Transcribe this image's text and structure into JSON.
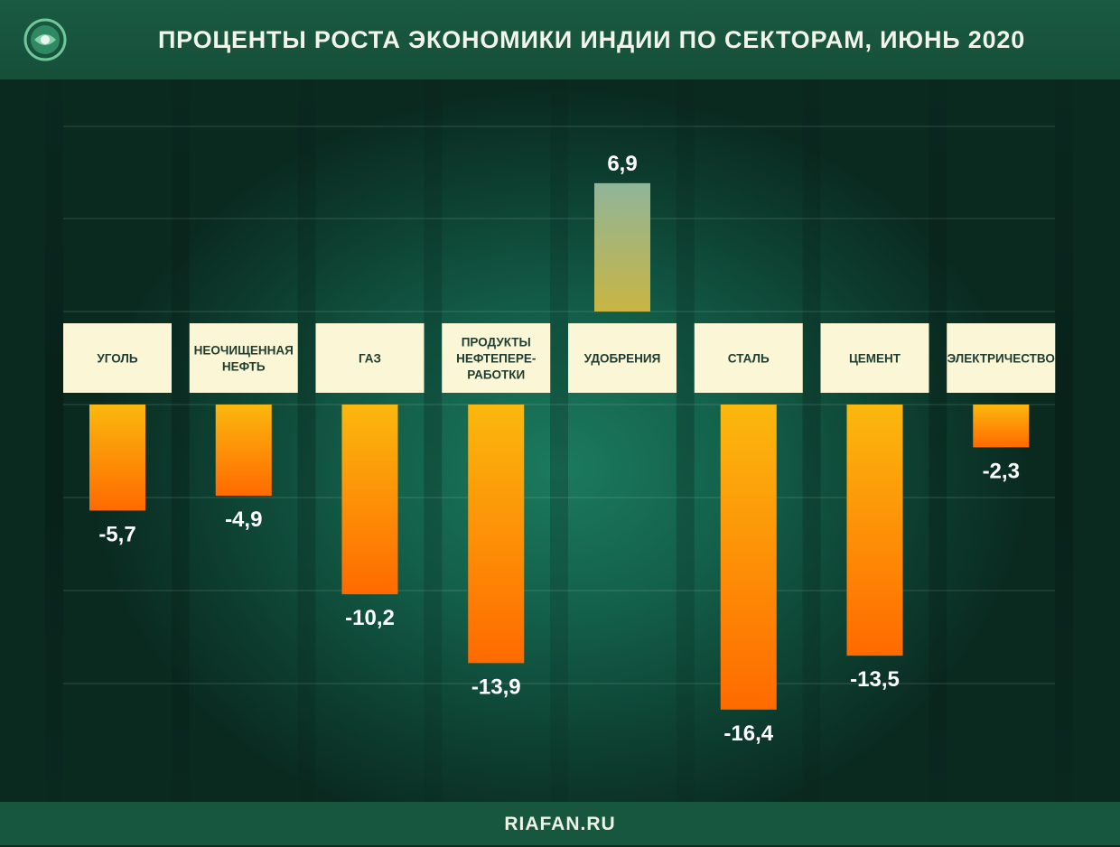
{
  "header": {
    "title": "ПРОЦЕНТЫ РОСТА ЭКОНОМИКИ ИНДИИ ПО СЕКТОРАМ, ИЮНЬ 2020",
    "logo_icon": "globe-emblem-icon"
  },
  "footer": {
    "source": "RIAFAN.RU"
  },
  "colors": {
    "header_bg": "#1a5a42",
    "background": "#135f49",
    "label_band": "#fbf6d6",
    "negative_bar_top": "#fbb80e",
    "negative_bar_bottom": "#ff6a00",
    "positive_bar_top": "#8fb59a",
    "positive_bar_bottom": "#c9b543",
    "value_text": "#ffffff"
  },
  "chart_data": {
    "type": "bar",
    "title": "ПРОЦЕНТЫ РОСТА ЭКОНОМИКИ ИНДИИ ПО СЕКТОРАМ, ИЮНЬ 2020",
    "categories": [
      [
        "УГОЛЬ"
      ],
      [
        "НЕОЧИЩЕННАЯ",
        "НЕФТЬ"
      ],
      [
        "ГАЗ"
      ],
      [
        "ПРОДУКТЫ",
        "НЕФТЕПЕРЕ-",
        "РАБОТКИ"
      ],
      [
        "УДОБРЕНИЯ"
      ],
      [
        "СТАЛЬ"
      ],
      [
        "ЦЕМЕНТ"
      ],
      [
        "ЭЛЕКТРИЧЕСТВО"
      ]
    ],
    "values": [
      -5.7,
      -4.9,
      -10.2,
      -13.9,
      6.9,
      -16.4,
      -13.5,
      -2.3
    ],
    "value_labels": [
      "-5,7",
      "-4,9",
      "-10,2",
      "-13,9",
      "6,9",
      "-16,4",
      "-13,5",
      "-2,3"
    ],
    "grid": true,
    "legend": "none"
  }
}
